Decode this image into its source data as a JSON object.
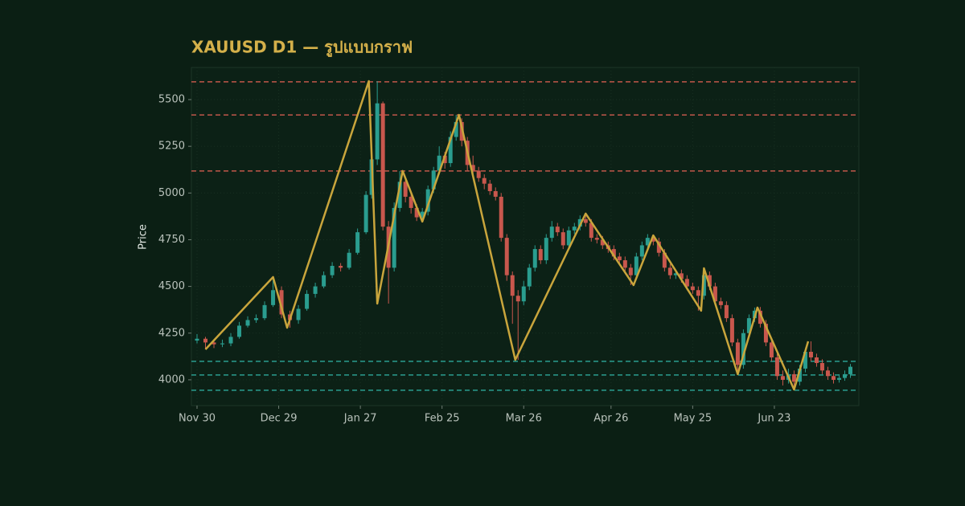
{
  "chart_data": {
    "type": "candlestick",
    "title": "XAUUSD D1 — รูปแบบกราฟ",
    "y_label": "Price",
    "x": [
      0,
      3,
      6,
      9,
      12,
      15,
      18,
      21,
      24,
      27,
      30,
      33,
      36,
      39,
      42,
      45,
      48,
      51,
      54,
      57,
      60,
      62,
      64,
      66,
      68,
      70,
      72,
      74,
      76,
      78,
      80,
      82,
      84,
      86,
      88,
      90,
      92,
      94,
      96,
      98,
      100,
      102,
      104,
      106,
      108,
      110,
      112,
      114,
      116,
      118,
      120,
      122,
      124,
      126,
      128,
      130,
      132,
      134,
      136,
      138,
      140,
      142,
      144,
      146,
      148,
      150,
      152,
      154,
      156,
      158,
      160,
      162,
      164,
      166,
      168,
      170,
      172,
      174,
      176,
      178,
      180,
      182,
      184,
      186,
      188,
      190,
      192,
      194,
      196,
      198,
      200,
      202,
      204,
      206,
      208,
      210,
      212,
      214,
      216,
      218,
      220,
      222,
      224,
      226,
      228,
      230,
      232
    ],
    "open": [
      4210,
      4220,
      4200,
      4190,
      4195,
      4230,
      4290,
      4320,
      4330,
      4400,
      4480,
      4350,
      4320,
      4380,
      4460,
      4500,
      4560,
      4610,
      4600,
      4680,
      4790,
      4990,
      5180,
      5480,
      4820,
      4600,
      4920,
      5060,
      4980,
      4920,
      4870,
      4900,
      5020,
      5120,
      5200,
      5160,
      5300,
      5380,
      5280,
      5150,
      5120,
      5080,
      5050,
      5010,
      4980,
      4760,
      4560,
      4450,
      4420,
      4500,
      4600,
      4700,
      4640,
      4760,
      4820,
      4790,
      4720,
      4800,
      4820,
      4860,
      4840,
      4760,
      4750,
      4720,
      4700,
      4660,
      4640,
      4600,
      4560,
      4660,
      4720,
      4760,
      4740,
      4680,
      4600,
      4560,
      4570,
      4540,
      4500,
      4480,
      4450,
      4560,
      4500,
      4420,
      4400,
      4330,
      4200,
      4080,
      4250,
      4330,
      4370,
      4300,
      4200,
      4120,
      4020,
      4000,
      4030,
      3990,
      4060,
      4150,
      4120,
      4090,
      4050,
      4020,
      4000,
      4010,
      4030
    ],
    "high": [
      4245,
      4230,
      4215,
      4215,
      4250,
      4310,
      4340,
      4350,
      4420,
      4550,
      4500,
      4370,
      4400,
      4480,
      4520,
      4580,
      4630,
      4625,
      4700,
      4810,
      5010,
      5200,
      5599,
      5490,
      4850,
      4950,
      5118,
      5080,
      5000,
      4940,
      4920,
      5040,
      5140,
      5250,
      5220,
      5330,
      5418,
      5400,
      5300,
      5200,
      5140,
      5100,
      5070,
      5030,
      5000,
      4780,
      4580,
      4480,
      4530,
      4620,
      4720,
      4720,
      4780,
      4850,
      4840,
      4810,
      4820,
      4840,
      4880,
      4890,
      4860,
      4780,
      4770,
      4740,
      4720,
      4680,
      4660,
      4620,
      4680,
      4740,
      4780,
      4773,
      4760,
      4700,
      4620,
      4590,
      4590,
      4560,
      4520,
      4500,
      4597,
      4580,
      4520,
      4440,
      4420,
      4350,
      4220,
      4270,
      4350,
      4387,
      4390,
      4320,
      4220,
      4140,
      4050,
      4060,
      4050,
      4080,
      4170,
      4206,
      4140,
      4110,
      4070,
      4040,
      4030,
      4050,
      4085
    ],
    "low": [
      4195,
      4163,
      4170,
      4175,
      4180,
      4220,
      4280,
      4305,
      4320,
      4390,
      4330,
      4279,
      4300,
      4370,
      4440,
      4490,
      4545,
      4580,
      4590,
      4670,
      4780,
      4970,
      5150,
      4800,
      4408,
      4580,
      4900,
      4950,
      4890,
      4850,
      4847,
      4880,
      5000,
      5100,
      5130,
      5140,
      5280,
      5250,
      5120,
      5090,
      5060,
      5020,
      4990,
      4960,
      4740,
      4530,
      4300,
      4107,
      4400,
      4480,
      4580,
      4620,
      4620,
      4740,
      4770,
      4700,
      4700,
      4780,
      4800,
      4820,
      4740,
      4730,
      4700,
      4680,
      4640,
      4620,
      4580,
      4507,
      4540,
      4640,
      4700,
      4720,
      4660,
      4580,
      4540,
      4540,
      4520,
      4480,
      4460,
      4370,
      4430,
      4480,
      4400,
      4380,
      4310,
      4180,
      4030,
      4060,
      4230,
      4310,
      4280,
      4180,
      4100,
      4000,
      3970,
      3980,
      3948,
      3970,
      4040,
      4100,
      4070,
      4030,
      4000,
      3980,
      3985,
      3995,
      4010
    ],
    "close": [
      4220,
      4200,
      4190,
      4195,
      4230,
      4290,
      4320,
      4330,
      4400,
      4480,
      4350,
      4320,
      4380,
      4460,
      4500,
      4560,
      4610,
      4600,
      4680,
      4790,
      4990,
      5180,
      5480,
      4820,
      4600,
      4920,
      5060,
      4980,
      4920,
      4870,
      4900,
      5020,
      5120,
      5200,
      5160,
      5300,
      5380,
      5280,
      5150,
      5120,
      5080,
      5050,
      5010,
      4980,
      4760,
      4560,
      4450,
      4420,
      4500,
      4600,
      4700,
      4640,
      4760,
      4820,
      4790,
      4720,
      4800,
      4820,
      4860,
      4840,
      4760,
      4750,
      4720,
      4700,
      4660,
      4640,
      4600,
      4560,
      4660,
      4720,
      4760,
      4740,
      4680,
      4600,
      4560,
      4570,
      4540,
      4500,
      4480,
      4450,
      4560,
      4500,
      4420,
      4400,
      4330,
      4200,
      4080,
      4250,
      4330,
      4370,
      4300,
      4200,
      4120,
      4020,
      4000,
      4030,
      3990,
      4060,
      4150,
      4120,
      4090,
      4050,
      4020,
      4000,
      4010,
      4030,
      4070
    ],
    "up_color": "#2a9d8f",
    "down_color": "#c8574d",
    "zigzag": {
      "color": "#c9a53c",
      "x": [
        3,
        27,
        32,
        61,
        64,
        73,
        80,
        93,
        113,
        138,
        155,
        162,
        179,
        180,
        192,
        199,
        212,
        217
      ],
      "values": [
        4163,
        4550,
        4279,
        5599,
        4408,
        5118,
        4847,
        5418,
        4107,
        4890,
        4507,
        4773,
        4370,
        4597,
        4030,
        4387,
        3948,
        4206
      ]
    },
    "resistance": {
      "color": "#c0574a",
      "values": [
        5595,
        5418,
        5118
      ]
    },
    "support": {
      "color": "#2a9d8f",
      "values": [
        4099,
        4026,
        3944
      ]
    },
    "xlim": [
      -2,
      235
    ],
    "ylim": [
      3862,
      5672
    ],
    "xticks": [
      {
        "value": 0,
        "label": "Nov 30"
      },
      {
        "value": 29,
        "label": "Dec 29"
      },
      {
        "value": 58,
        "label": "Jan 27"
      },
      {
        "value": 87,
        "label": "Feb 25"
      },
      {
        "value": 116,
        "label": "Mar 26"
      },
      {
        "value": 147,
        "label": "Apr 26"
      },
      {
        "value": 176,
        "label": "May 25"
      },
      {
        "value": 205,
        "label": "Jun 23"
      }
    ],
    "yticks": [
      4000,
      4250,
      4500,
      4750,
      5000,
      5250,
      5500
    ],
    "grid": true
  }
}
